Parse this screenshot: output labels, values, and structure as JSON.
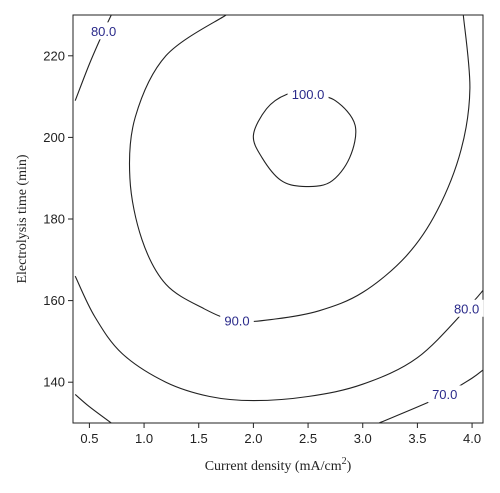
{
  "chart_data": {
    "type": "contour",
    "xlabel": "Current density (mA/cm",
    "xlabel_sup": "2",
    "xlabel_tail": ")",
    "ylabel": "Electrolysis time (min)",
    "xlim": [
      0.35,
      4.1
    ],
    "ylim": [
      130,
      230
    ],
    "x_ticks": [
      "0.5",
      "1.0",
      "1.5",
      "2.0",
      "2.5",
      "3.0",
      "3.5",
      "4.0"
    ],
    "y_ticks": [
      "140",
      "160",
      "180",
      "200",
      "220"
    ],
    "grid": false,
    "contours": [
      {
        "label": "100.0",
        "label_at": [
          2.5,
          210.5
        ],
        "points": [
          [
            2.5,
            211
          ],
          [
            2.75,
            209
          ],
          [
            2.93,
            203
          ],
          [
            2.88,
            195
          ],
          [
            2.7,
            189
          ],
          [
            2.45,
            188
          ],
          [
            2.25,
            189.5
          ],
          [
            2.08,
            195
          ],
          [
            2.0,
            200.5
          ],
          [
            2.12,
            207
          ],
          [
            2.3,
            210.5
          ],
          [
            2.5,
            211
          ]
        ]
      },
      {
        "label": "90.0",
        "label_at": [
          1.85,
          155
        ],
        "points": [
          [
            1.75,
            230
          ],
          [
            1.2,
            220
          ],
          [
            0.92,
            205
          ],
          [
            0.87,
            190
          ],
          [
            0.98,
            175
          ],
          [
            1.2,
            164
          ],
          [
            1.55,
            158
          ],
          [
            1.85,
            155
          ],
          [
            2.2,
            155.5
          ],
          [
            2.6,
            157.5
          ],
          [
            3.0,
            162
          ],
          [
            3.4,
            171
          ],
          [
            3.68,
            182
          ],
          [
            3.9,
            197
          ],
          [
            3.98,
            212
          ],
          [
            3.92,
            230
          ]
        ]
      },
      {
        "label": "80.0",
        "label_at": [
          0.63,
          226
        ],
        "points": [
          [
            0.37,
            209
          ],
          [
            0.5,
            218
          ],
          [
            0.63,
            226
          ],
          [
            0.7,
            230
          ]
        ]
      },
      {
        "label": "80.0",
        "label_at": [
          3.95,
          158
        ],
        "points": [
          [
            0.37,
            166
          ],
          [
            0.55,
            156
          ],
          [
            0.8,
            147
          ],
          [
            1.2,
            140
          ],
          [
            1.6,
            136.5
          ],
          [
            2.0,
            135.5
          ],
          [
            2.5,
            136.5
          ],
          [
            3.0,
            139.5
          ],
          [
            3.5,
            146
          ],
          [
            3.95,
            158
          ],
          [
            4.1,
            162.5
          ]
        ]
      },
      {
        "label": "70.0",
        "label_at": [
          3.75,
          137
        ],
        "points": [
          [
            0.37,
            137
          ],
          [
            0.5,
            134
          ],
          [
            0.7,
            130
          ]
        ]
      },
      {
        "label": "",
        "label_at": null,
        "points": [
          [
            3.15,
            130
          ],
          [
            3.55,
            134.5
          ],
          [
            3.75,
            137
          ],
          [
            4.0,
            141
          ],
          [
            4.1,
            143
          ]
        ]
      }
    ]
  }
}
